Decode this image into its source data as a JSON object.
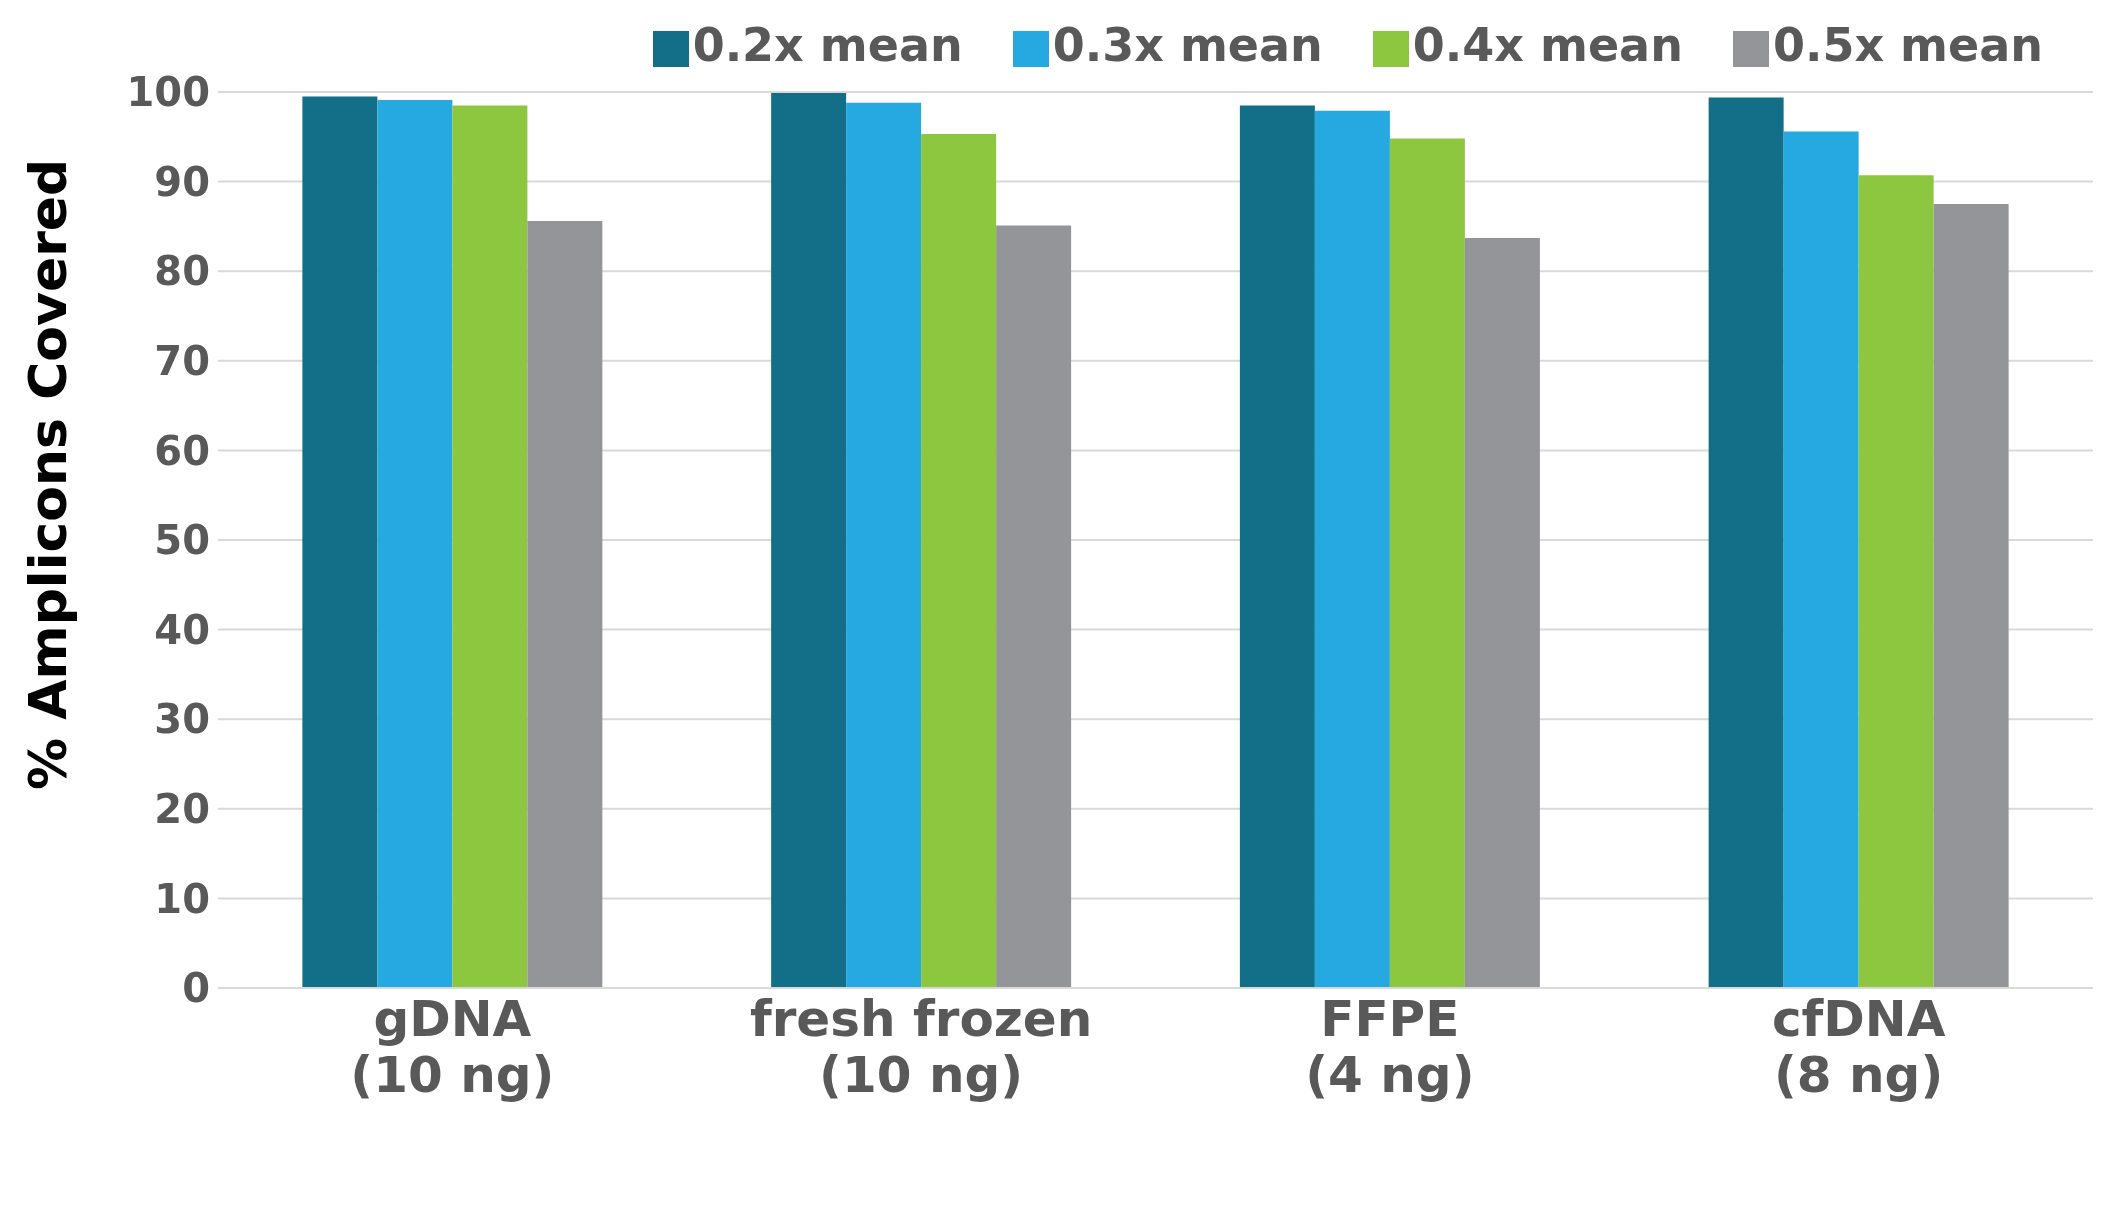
{
  "chart_data": {
    "type": "bar",
    "ylabel": "% Amplicons Covered",
    "categories": [
      "gDNA\n(10 ng)",
      "fresh frozen\n(10 ng)",
      "FFPE\n(4 ng)",
      "cfDNA\n(8 ng)"
    ],
    "series": [
      {
        "name": "0.2x mean",
        "color": "#136f87",
        "values": [
          99.5,
          99.9,
          98.5,
          99.4
        ]
      },
      {
        "name": "0.3x mean",
        "color": "#25a9e0",
        "values": [
          99.1,
          98.8,
          97.9,
          95.6
        ]
      },
      {
        "name": "0.4x mean",
        "color": "#8dc63f",
        "values": [
          98.5,
          95.3,
          94.8,
          90.7
        ]
      },
      {
        "name": "0.5x mean",
        "color": "#939598",
        "values": [
          85.6,
          85.1,
          83.7,
          87.5
        ]
      }
    ],
    "ylim": [
      0,
      100
    ],
    "yticks": [
      0,
      10,
      20,
      30,
      40,
      50,
      60,
      70,
      80,
      90,
      100
    ],
    "grid": "y",
    "legend": "top right"
  }
}
